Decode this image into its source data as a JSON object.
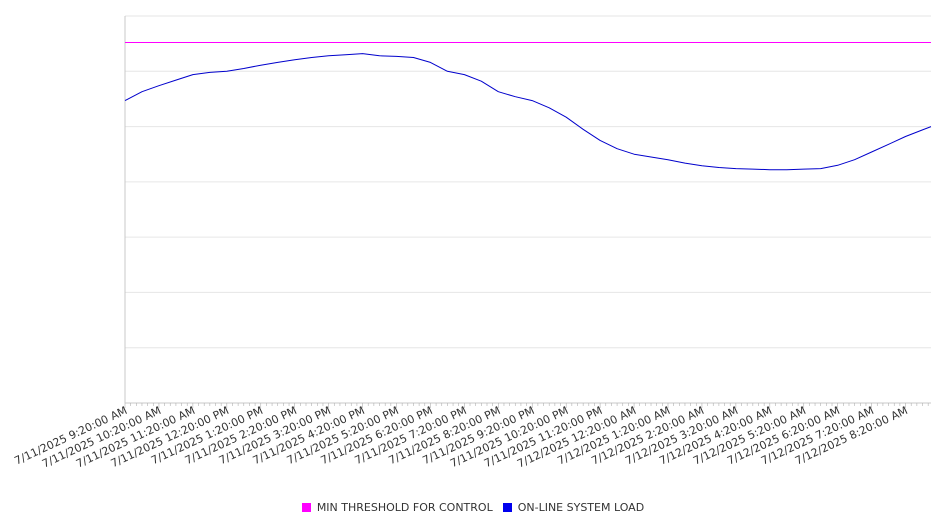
{
  "chart_data": {
    "type": "line",
    "x_tick_labels": [
      "7/11/2025 9:20:00 AM",
      "7/11/2025 10:20:00 AM",
      "7/11/2025 11:20:00 AM",
      "7/11/2025 12:20:00 PM",
      "7/11/2025 1:20:00 PM",
      "7/11/2025 2:20:00 PM",
      "7/11/2025 3:20:00 PM",
      "7/11/2025 4:20:00 PM",
      "7/11/2025 5:20:00 PM",
      "7/11/2025 6:20:00 PM",
      "7/11/2025 7:20:00 PM",
      "7/11/2025 8:20:00 PM",
      "7/11/2025 9:20:00 PM",
      "7/11/2025 10:20:00 PM",
      "7/11/2025 11:20:00 PM",
      "7/12/2025 12:20:00 AM",
      "7/12/2025 1:20:00 AM",
      "7/12/2025 2:20:00 AM",
      "7/12/2025 3:20:00 AM",
      "7/12/2025 4:20:00 AM",
      "7/12/2025 5:20:00 AM",
      "7/12/2025 6:20:00 AM",
      "7/12/2025 7:20:00 AM",
      "7/12/2025 8:20:00 AM"
    ],
    "y_gridlines": 7,
    "ylim": [
      0,
      7
    ],
    "grid": true,
    "legend_position": "bottom-center",
    "series": [
      {
        "name": "MIN THRESHOLD FOR CONTROL",
        "color": "#ff00ff",
        "x": [
          0,
          23.75
        ],
        "y": [
          6.52,
          6.52
        ]
      },
      {
        "name": "ON-LINE SYSTEM LOAD",
        "color": "#0000cc",
        "x": [
          0,
          0.5,
          1,
          1.5,
          2,
          2.5,
          3,
          3.5,
          4,
          4.5,
          5,
          5.5,
          6,
          6.5,
          7,
          7.5,
          8,
          8.5,
          9,
          9.5,
          10,
          10.5,
          11,
          11.5,
          12,
          12.5,
          13,
          13.5,
          14,
          14.5,
          15,
          15.5,
          16,
          16.5,
          17,
          17.5,
          18,
          18.5,
          19,
          19.5,
          20,
          20.5,
          21,
          21.5,
          22,
          22.5,
          23,
          23.5,
          23.75
        ],
        "y": [
          5.47,
          5.63,
          5.74,
          5.84,
          5.94,
          5.98,
          6.0,
          6.05,
          6.11,
          6.16,
          6.21,
          6.25,
          6.28,
          6.3,
          6.32,
          6.28,
          6.27,
          6.25,
          6.16,
          6.0,
          5.94,
          5.82,
          5.63,
          5.54,
          5.47,
          5.34,
          5.17,
          4.95,
          4.75,
          4.6,
          4.5,
          4.45,
          4.4,
          4.34,
          4.29,
          4.26,
          4.24,
          4.23,
          4.22,
          4.22,
          4.23,
          4.24,
          4.3,
          4.4,
          4.54,
          4.68,
          4.82,
          4.94,
          5.0
        ]
      }
    ]
  },
  "legend": [
    {
      "label": "MIN THRESHOLD FOR CONTROL",
      "color": "#ff00ff"
    },
    {
      "label": "ON-LINE SYSTEM LOAD",
      "color": "#0000ee"
    }
  ]
}
